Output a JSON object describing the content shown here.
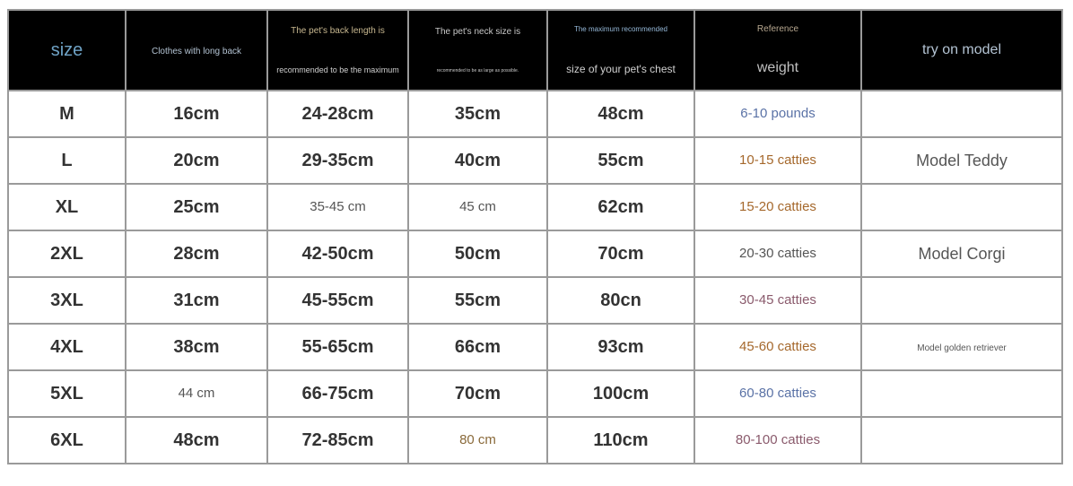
{
  "header": {
    "size": "size",
    "long_back": "Clothes with long back",
    "back_length_1": "The pet's back length is",
    "back_length_2": "recommended to be the maximum",
    "neck_1": "The pet's neck size is",
    "neck_2": "recommended to be as large as possible.",
    "chest_1": "The maximum recommended",
    "chest_2": "size of your pet's chest",
    "weight_1": "Reference",
    "weight_2": "weight",
    "model": "try on model"
  },
  "rows": [
    {
      "size": "M",
      "long_back": "16cm",
      "back": "24-28cm",
      "neck": "35cm",
      "chest": "48cm",
      "weight": "6-10 pounds",
      "weight_color": "#5a72a6",
      "model": ""
    },
    {
      "size": "L",
      "long_back": "20cm",
      "back": "29-35cm",
      "neck": "40cm",
      "chest": "55cm",
      "weight": "10-15 catties",
      "weight_color": "#a5682c",
      "model": "Model Teddy"
    },
    {
      "size": "XL",
      "long_back": "25cm",
      "back": "35-45 cm",
      "neck": "45 cm",
      "chest": "62cm",
      "weight": "15-20 catties",
      "weight_color": "#a5682c",
      "model": ""
    },
    {
      "size": "2XL",
      "long_back": "28cm",
      "back": "42-50cm",
      "neck": "50cm",
      "chest": "70cm",
      "weight": "20-30 catties",
      "weight_color": "#555555",
      "model": "Model Corgi"
    },
    {
      "size": "3XL",
      "long_back": "31cm",
      "back": "45-55cm",
      "neck": "55cm",
      "chest": "80cn",
      "weight": "30-45 catties",
      "weight_color": "#8a5a6c",
      "model": ""
    },
    {
      "size": "4XL",
      "long_back": "38cm",
      "back": "55-65cm",
      "neck": "66cm",
      "chest": "93cm",
      "weight": "45-60 catties",
      "weight_color": "#a5682c",
      "model": "Model golden retriever"
    },
    {
      "size": "5XL",
      "long_back": "44 cm",
      "back": "66-75cm",
      "neck": "70cm",
      "chest": "100cm",
      "weight": "60-80 catties",
      "weight_color": "#5a72a6",
      "model": ""
    },
    {
      "size": "6XL",
      "long_back": "48cm",
      "back": "72-85cm",
      "neck": "80 cm",
      "chest": "110cm",
      "weight": "80-100 catties",
      "weight_color": "#8a5a6c",
      "model": ""
    }
  ]
}
